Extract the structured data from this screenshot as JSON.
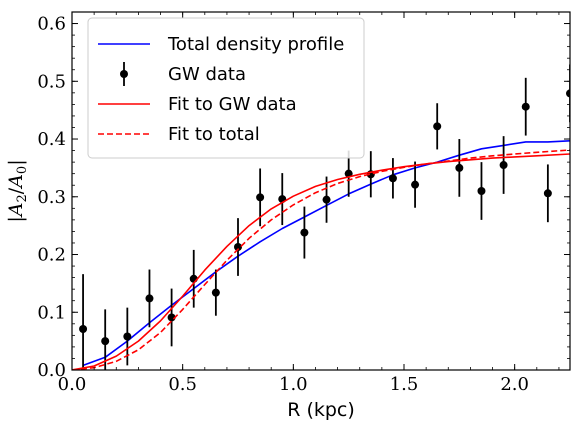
{
  "chart_data": {
    "type": "line",
    "title": "",
    "xlabel": "R (kpc)",
    "ylabel": "|A2/A0|",
    "ylabel_parts": {
      "bar": "|",
      "a": "A",
      "sub_a": "2",
      "slash": "/",
      "b": "A",
      "sub_b": "0"
    },
    "xlim": [
      0.0,
      2.25
    ],
    "ylim": [
      0.0,
      0.62
    ],
    "xticks": [
      0.0,
      0.5,
      1.0,
      1.5,
      2.0
    ],
    "xtick_labels": [
      "0.0",
      "0.5",
      "1.0",
      "1.5",
      "2.0"
    ],
    "yticks": [
      0.0,
      0.1,
      0.2,
      0.3,
      0.4,
      0.5,
      0.6
    ],
    "ytick_labels": [
      "0.0",
      "0.1",
      "0.2",
      "0.3",
      "0.4",
      "0.5",
      "0.6"
    ],
    "grid": false,
    "legend_placement": "top-left",
    "legend": [
      {
        "label": "Total density profile",
        "color": "#0000ff",
        "style": "solid"
      },
      {
        "label": "GW data",
        "color": "#000000",
        "style": "errorbar"
      },
      {
        "label": "Fit to GW data",
        "color": "#ff0000",
        "style": "solid"
      },
      {
        "label": "Fit to total",
        "color": "#ff0000",
        "style": "dashed"
      }
    ],
    "series": [
      {
        "name": "Total density profile",
        "color": "#0000ff",
        "style": "solid",
        "x": [
          0.05,
          0.15,
          0.25,
          0.35,
          0.45,
          0.55,
          0.65,
          0.75,
          0.85,
          0.95,
          1.05,
          1.15,
          1.25,
          1.35,
          1.45,
          1.55,
          1.65,
          1.75,
          1.85,
          1.95,
          2.05,
          2.15,
          2.25
        ],
        "y": [
          0.008,
          0.022,
          0.05,
          0.082,
          0.112,
          0.141,
          0.17,
          0.197,
          0.222,
          0.245,
          0.265,
          0.285,
          0.305,
          0.322,
          0.338,
          0.35,
          0.36,
          0.372,
          0.383,
          0.389,
          0.395,
          0.395,
          0.397
        ]
      },
      {
        "name": "GW data",
        "color": "#000000",
        "style": "errorbar",
        "x": [
          0.05,
          0.15,
          0.25,
          0.35,
          0.45,
          0.55,
          0.65,
          0.75,
          0.85,
          0.95,
          1.05,
          1.15,
          1.25,
          1.35,
          1.45,
          1.55,
          1.65,
          1.75,
          1.85,
          1.95,
          2.05,
          2.15,
          2.25
        ],
        "y": [
          0.071,
          0.05,
          0.058,
          0.124,
          0.091,
          0.158,
          0.134,
          0.213,
          0.299,
          0.296,
          0.238,
          0.295,
          0.34,
          0.339,
          0.332,
          0.321,
          0.422,
          0.35,
          0.31,
          0.355,
          0.456,
          0.306,
          0.479
        ],
        "yerr": [
          0.095,
          0.055,
          0.05,
          0.05,
          0.05,
          0.05,
          0.04,
          0.05,
          0.05,
          0.045,
          0.045,
          0.04,
          0.04,
          0.04,
          0.035,
          0.04,
          0.04,
          0.05,
          0.05,
          0.05,
          0.05,
          0.05,
          0.05
        ]
      },
      {
        "name": "Fit to GW data",
        "color": "#ff0000",
        "style": "solid",
        "x": [
          0.0,
          0.1,
          0.2,
          0.3,
          0.4,
          0.5,
          0.6,
          0.7,
          0.8,
          0.9,
          1.0,
          1.1,
          1.2,
          1.3,
          1.4,
          1.5,
          1.6,
          1.7,
          1.8,
          1.9,
          2.0,
          2.1,
          2.25
        ],
        "y": [
          0.0,
          0.007,
          0.024,
          0.05,
          0.085,
          0.128,
          0.173,
          0.214,
          0.25,
          0.279,
          0.301,
          0.318,
          0.33,
          0.339,
          0.346,
          0.352,
          0.357,
          0.361,
          0.364,
          0.367,
          0.369,
          0.371,
          0.374
        ]
      },
      {
        "name": "Fit to total",
        "color": "#ff0000",
        "style": "dashed",
        "x": [
          0.0,
          0.1,
          0.2,
          0.3,
          0.4,
          0.5,
          0.6,
          0.7,
          0.8,
          0.9,
          1.0,
          1.1,
          1.2,
          1.3,
          1.4,
          1.5,
          1.6,
          1.7,
          1.8,
          1.9,
          2.0,
          2.1,
          2.25
        ],
        "y": [
          0.0,
          0.004,
          0.015,
          0.035,
          0.065,
          0.105,
          0.148,
          0.19,
          0.228,
          0.26,
          0.286,
          0.307,
          0.323,
          0.335,
          0.344,
          0.351,
          0.357,
          0.362,
          0.367,
          0.371,
          0.374,
          0.377,
          0.381
        ]
      }
    ]
  }
}
